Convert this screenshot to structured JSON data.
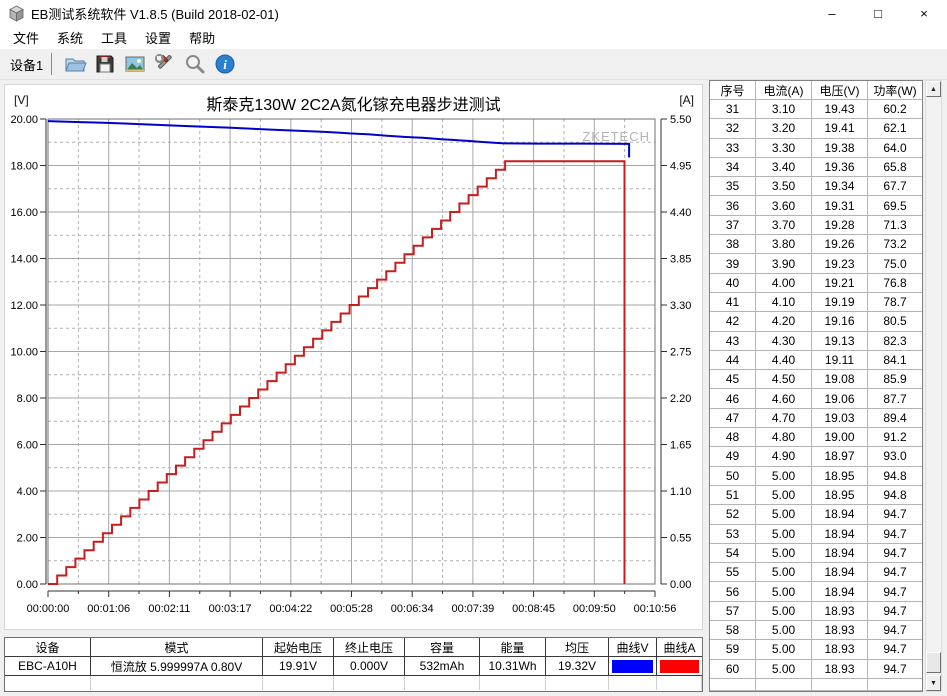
{
  "window": {
    "title": "EB测试系统软件 V1.8.5 (Build 2018-02-01)",
    "minimize": "–",
    "maximize": "□",
    "close": "×"
  },
  "menu": {
    "items": [
      "文件",
      "系统",
      "工具",
      "设置",
      "帮助"
    ]
  },
  "toolbar": {
    "device_tab": "设备1",
    "buttons": [
      "open-file",
      "save",
      "export-image",
      "tools",
      "zoom",
      "about"
    ]
  },
  "chart_data": {
    "type": "line",
    "title": "斯泰克130W 2C2A氮化镓充电器步进测试",
    "watermark": "ZKETECH",
    "left_axis": {
      "unit": "[V]",
      "min": 0,
      "max": 20,
      "ticks": [
        "20.00",
        "18.00",
        "16.00",
        "14.00",
        "12.00",
        "10.00",
        "8.00",
        "6.00",
        "4.00",
        "2.00",
        "0.00"
      ]
    },
    "right_axis": {
      "unit": "[A]",
      "min": 0,
      "max": 5.5,
      "ticks": [
        "5.50",
        "4.95",
        "4.40",
        "3.85",
        "3.30",
        "2.75",
        "2.20",
        "1.65",
        "1.10",
        "0.55",
        "0.00"
      ]
    },
    "x_axis": {
      "min_s": 0,
      "max_s": 656,
      "ticks": [
        "00:00:00",
        "00:01:06",
        "00:02:11",
        "00:03:17",
        "00:04:22",
        "00:05:28",
        "00:06:34",
        "00:07:39",
        "00:08:45",
        "00:09:50",
        "00:10:56"
      ]
    },
    "grid": {
      "major": "solid",
      "minor": "dashed"
    },
    "series": [
      {
        "name": "电压V",
        "axis": "left",
        "color": "#0000cc",
        "step": false,
        "points": [
          [
            0,
            19.91
          ],
          [
            30,
            19.87
          ],
          [
            60,
            19.84
          ],
          [
            99,
            19.78
          ],
          [
            148,
            19.7
          ],
          [
            198,
            19.62
          ],
          [
            247,
            19.53
          ],
          [
            296,
            19.45
          ],
          [
            306,
            19.43
          ],
          [
            316,
            19.41
          ],
          [
            326,
            19.38
          ],
          [
            336,
            19.36
          ],
          [
            346,
            19.34
          ],
          [
            356,
            19.31
          ],
          [
            366,
            19.28
          ],
          [
            375,
            19.26
          ],
          [
            385,
            19.23
          ],
          [
            395,
            19.21
          ],
          [
            405,
            19.19
          ],
          [
            415,
            19.16
          ],
          [
            425,
            19.13
          ],
          [
            435,
            19.11
          ],
          [
            445,
            19.08
          ],
          [
            454,
            19.06
          ],
          [
            464,
            19.03
          ],
          [
            474,
            19.0
          ],
          [
            484,
            18.97
          ],
          [
            494,
            18.95
          ],
          [
            530,
            18.94
          ],
          [
            580,
            18.94
          ],
          [
            628,
            18.93
          ],
          [
            628,
            18.35
          ]
        ]
      },
      {
        "name": "电流A",
        "axis": "right",
        "color": "#c41e1e",
        "step": true,
        "points": [
          [
            0,
            0.0
          ],
          [
            9.9,
            0.1
          ],
          [
            19.8,
            0.2
          ],
          [
            29.6,
            0.3
          ],
          [
            39.5,
            0.4
          ],
          [
            49.4,
            0.5
          ],
          [
            59.3,
            0.6
          ],
          [
            69.2,
            0.7
          ],
          [
            79.0,
            0.8
          ],
          [
            88.9,
            0.9
          ],
          [
            98.8,
            1.0
          ],
          [
            108.7,
            1.1
          ],
          [
            118.6,
            1.2
          ],
          [
            128.4,
            1.3
          ],
          [
            138.3,
            1.4
          ],
          [
            148.2,
            1.5
          ],
          [
            158.1,
            1.6
          ],
          [
            168.0,
            1.7
          ],
          [
            177.8,
            1.8
          ],
          [
            187.7,
            1.9
          ],
          [
            197.6,
            2.0
          ],
          [
            207.5,
            2.1
          ],
          [
            217.4,
            2.2
          ],
          [
            227.2,
            2.3
          ],
          [
            237.1,
            2.4
          ],
          [
            247.0,
            2.5
          ],
          [
            256.9,
            2.6
          ],
          [
            266.8,
            2.7
          ],
          [
            276.6,
            2.8
          ],
          [
            286.5,
            2.9
          ],
          [
            296.4,
            3.0
          ],
          [
            306.3,
            3.1
          ],
          [
            316.2,
            3.2
          ],
          [
            326.0,
            3.3
          ],
          [
            335.9,
            3.4
          ],
          [
            345.8,
            3.5
          ],
          [
            355.7,
            3.6
          ],
          [
            365.6,
            3.7
          ],
          [
            375.4,
            3.8
          ],
          [
            385.3,
            3.9
          ],
          [
            395.2,
            4.0
          ],
          [
            405.1,
            4.1
          ],
          [
            415.0,
            4.2
          ],
          [
            424.8,
            4.3
          ],
          [
            434.7,
            4.4
          ],
          [
            444.6,
            4.5
          ],
          [
            454.5,
            4.6
          ],
          [
            464.4,
            4.7
          ],
          [
            474.2,
            4.8
          ],
          [
            484.1,
            4.9
          ],
          [
            494.0,
            5.0
          ],
          [
            623,
            5.0
          ],
          [
            623,
            0
          ]
        ]
      }
    ]
  },
  "table": {
    "headers": [
      "序号",
      "电流(A)",
      "电压(V)",
      "功率(W)"
    ],
    "rows": [
      [
        "31",
        "3.10",
        "19.43",
        "60.2"
      ],
      [
        "32",
        "3.20",
        "19.41",
        "62.1"
      ],
      [
        "33",
        "3.30",
        "19.38",
        "64.0"
      ],
      [
        "34",
        "3.40",
        "19.36",
        "65.8"
      ],
      [
        "35",
        "3.50",
        "19.34",
        "67.7"
      ],
      [
        "36",
        "3.60",
        "19.31",
        "69.5"
      ],
      [
        "37",
        "3.70",
        "19.28",
        "71.3"
      ],
      [
        "38",
        "3.80",
        "19.26",
        "73.2"
      ],
      [
        "39",
        "3.90",
        "19.23",
        "75.0"
      ],
      [
        "40",
        "4.00",
        "19.21",
        "76.8"
      ],
      [
        "41",
        "4.10",
        "19.19",
        "78.7"
      ],
      [
        "42",
        "4.20",
        "19.16",
        "80.5"
      ],
      [
        "43",
        "4.30",
        "19.13",
        "82.3"
      ],
      [
        "44",
        "4.40",
        "19.11",
        "84.1"
      ],
      [
        "45",
        "4.50",
        "19.08",
        "85.9"
      ],
      [
        "46",
        "4.60",
        "19.06",
        "87.7"
      ],
      [
        "47",
        "4.70",
        "19.03",
        "89.4"
      ],
      [
        "48",
        "4.80",
        "19.00",
        "91.2"
      ],
      [
        "49",
        "4.90",
        "18.97",
        "93.0"
      ],
      [
        "50",
        "5.00",
        "18.95",
        "94.8"
      ],
      [
        "51",
        "5.00",
        "18.95",
        "94.8"
      ],
      [
        "52",
        "5.00",
        "18.94",
        "94.7"
      ],
      [
        "53",
        "5.00",
        "18.94",
        "94.7"
      ],
      [
        "54",
        "5.00",
        "18.94",
        "94.7"
      ],
      [
        "55",
        "5.00",
        "18.94",
        "94.7"
      ],
      [
        "56",
        "5.00",
        "18.94",
        "94.7"
      ],
      [
        "57",
        "5.00",
        "18.93",
        "94.7"
      ],
      [
        "58",
        "5.00",
        "18.93",
        "94.7"
      ],
      [
        "59",
        "5.00",
        "18.93",
        "94.7"
      ],
      [
        "60",
        "5.00",
        "18.93",
        "94.7"
      ]
    ]
  },
  "status_bar": {
    "headers": [
      "设备",
      "模式",
      "起始电压",
      "终止电压",
      "容量",
      "能量",
      "均压",
      "曲线V",
      "曲线A"
    ],
    "values": [
      "EBC-A10H",
      "恒流放  5.999997A  0.80V",
      "19.91V",
      "0.000V",
      "532mAh",
      "10.31Wh",
      "19.32V",
      "",
      ""
    ],
    "curve_v_color": "#0000ff",
    "curve_a_color": "#ff0000"
  }
}
